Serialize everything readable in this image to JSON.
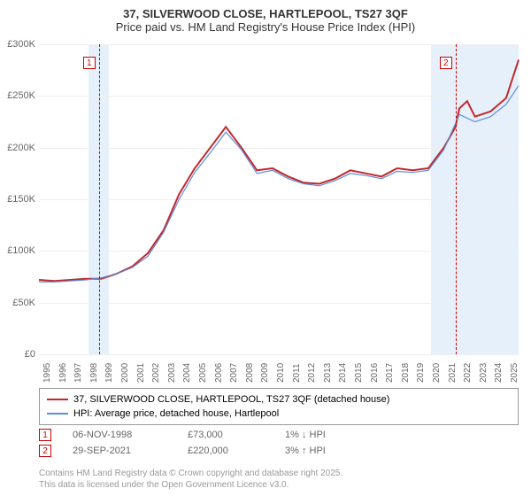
{
  "title": "37, SILVERWOOD CLOSE, HARTLEPOOL, TS27 3QF",
  "subtitle": "Price paid vs. HM Land Registry's House Price Index (HPI)",
  "chart": {
    "type": "line",
    "background_color": "#ffffff",
    "shaded_color": "#e6f0fa",
    "grid_color": "#eeeeee",
    "axis_color": "#666666",
    "font_size_title": 13,
    "font_size_axis": 11,
    "xlim": [
      1995,
      2025.8
    ],
    "ylim": [
      0,
      300000
    ],
    "ytick_step": 50000,
    "ytick_labels": [
      "£0",
      "£50K",
      "£100K",
      "£150K",
      "£200K",
      "£250K",
      "£300K"
    ],
    "xtick_step": 1,
    "xtick_start": 1995,
    "xtick_end": 2025,
    "series": [
      {
        "name": "property",
        "label": "37, SILVERWOOD CLOSE, HARTLEPOOL, TS27 3QF (detached house)",
        "color": "#c1272d",
        "line_width": 2,
        "x": [
          1995,
          1996,
          1997,
          1998,
          1998.85,
          1999,
          2000,
          2001,
          2002,
          2003,
          2004,
          2005,
          2006,
          2007,
          2008,
          2009,
          2010,
          2011,
          2012,
          2013,
          2014,
          2015,
          2016,
          2017,
          2018,
          2019,
          2020,
          2021,
          2021.75,
          2022,
          2022.5,
          2023,
          2024,
          2025,
          2025.8
        ],
        "y": [
          72000,
          71000,
          72000,
          73000,
          73000,
          73000,
          78000,
          85000,
          98000,
          120000,
          155000,
          180000,
          200000,
          220000,
          200000,
          178000,
          180000,
          172000,
          166000,
          165000,
          170000,
          178000,
          175000,
          172000,
          180000,
          178000,
          180000,
          200000,
          220000,
          238000,
          245000,
          230000,
          235000,
          248000,
          285000
        ]
      },
      {
        "name": "hpi",
        "label": "HPI: Average price, detached house, Hartlepool",
        "color": "#5b8fd6",
        "line_width": 1.2,
        "x": [
          1995,
          1996,
          1997,
          1998,
          1999,
          2000,
          2001,
          2002,
          2003,
          2004,
          2005,
          2006,
          2007,
          2008,
          2009,
          2010,
          2011,
          2012,
          2013,
          2014,
          2015,
          2016,
          2017,
          2018,
          2019,
          2020,
          2021,
          2022,
          2023,
          2024,
          2025,
          2025.8
        ],
        "y": [
          70000,
          70000,
          71000,
          72000,
          74000,
          78000,
          84000,
          95000,
          118000,
          150000,
          176000,
          195000,
          215000,
          198000,
          175000,
          178000,
          170000,
          165000,
          163000,
          168000,
          175000,
          173000,
          170000,
          177000,
          176000,
          178000,
          198000,
          232000,
          225000,
          230000,
          242000,
          260000
        ]
      }
    ]
  },
  "transactions": [
    {
      "marker": "1",
      "date": "06-NOV-1998",
      "price": "£73,000",
      "delta": "1% ↓ HPI",
      "year": 1998.85
    },
    {
      "marker": "2",
      "date": "29-SEP-2021",
      "price": "£220,000",
      "delta": "3% ↑ HPI",
      "year": 2021.75
    }
  ],
  "shaded_ranges": [
    {
      "start": 1998.2,
      "end": 1999.5
    },
    {
      "start": 2020.2,
      "end": 2025.8
    }
  ],
  "footer_line1": "Contains HM Land Registry data © Crown copyright and database right 2025.",
  "footer_line2": "This data is licensed under the Open Government Licence v3.0."
}
